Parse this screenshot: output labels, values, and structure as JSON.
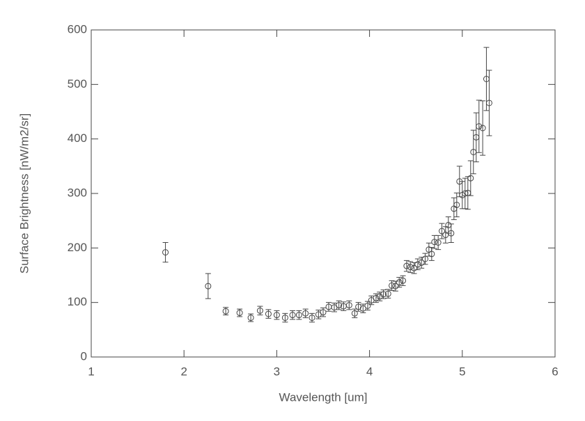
{
  "chart_data": {
    "type": "scatter",
    "xlabel": "Wavelength [um]",
    "ylabel": "Surface Brightness [nW/m2/sr]",
    "xlim": [
      1,
      6
    ],
    "xticks": [
      1,
      2,
      3,
      4,
      5,
      6
    ],
    "ylim": [
      0,
      600
    ],
    "yticks": [
      0,
      100,
      200,
      300,
      400,
      500,
      600
    ],
    "color": "#444444",
    "x": [
      1.8,
      2.26,
      2.45,
      2.6,
      2.72,
      2.82,
      2.91,
      3.0,
      3.09,
      3.17,
      3.24,
      3.31,
      3.38,
      3.45,
      3.5,
      3.56,
      3.62,
      3.67,
      3.72,
      3.78,
      3.84,
      3.88,
      3.93,
      3.98,
      4.02,
      4.07,
      4.11,
      4.15,
      4.2,
      4.24,
      4.28,
      4.32,
      4.36,
      4.4,
      4.44,
      4.48,
      4.52,
      4.56,
      4.6,
      4.64,
      4.67,
      4.7,
      4.74,
      4.78,
      4.82,
      4.85,
      4.88,
      4.91,
      4.94,
      4.97,
      5.0,
      5.03,
      5.06,
      5.09,
      5.12,
      5.15,
      5.18,
      5.22,
      5.26,
      5.29
    ],
    "values": [
      192,
      130,
      84,
      81,
      72,
      85,
      79,
      77,
      72,
      77,
      77,
      80,
      72,
      78,
      82,
      92,
      91,
      95,
      93,
      95,
      80,
      92,
      89,
      94,
      104,
      108,
      111,
      115,
      116,
      131,
      130,
      137,
      140,
      167,
      165,
      163,
      170,
      173,
      180,
      197,
      189,
      211,
      210,
      231,
      224,
      242,
      227,
      272,
      279,
      322,
      297,
      300,
      301,
      328,
      376,
      403,
      423,
      420,
      510,
      466
    ],
    "errors": [
      18,
      23,
      7,
      7,
      7,
      8,
      8,
      8,
      8,
      8,
      8,
      8,
      8,
      8,
      8,
      8,
      8,
      8,
      8,
      8,
      8,
      8,
      8,
      8,
      8,
      8,
      8,
      8,
      8,
      9,
      9,
      9,
      9,
      10,
      10,
      10,
      10,
      10,
      10,
      12,
      12,
      12,
      13,
      14,
      15,
      15,
      17,
      20,
      22,
      28,
      25,
      28,
      30,
      32,
      40,
      45,
      48,
      50,
      58,
      60
    ]
  }
}
